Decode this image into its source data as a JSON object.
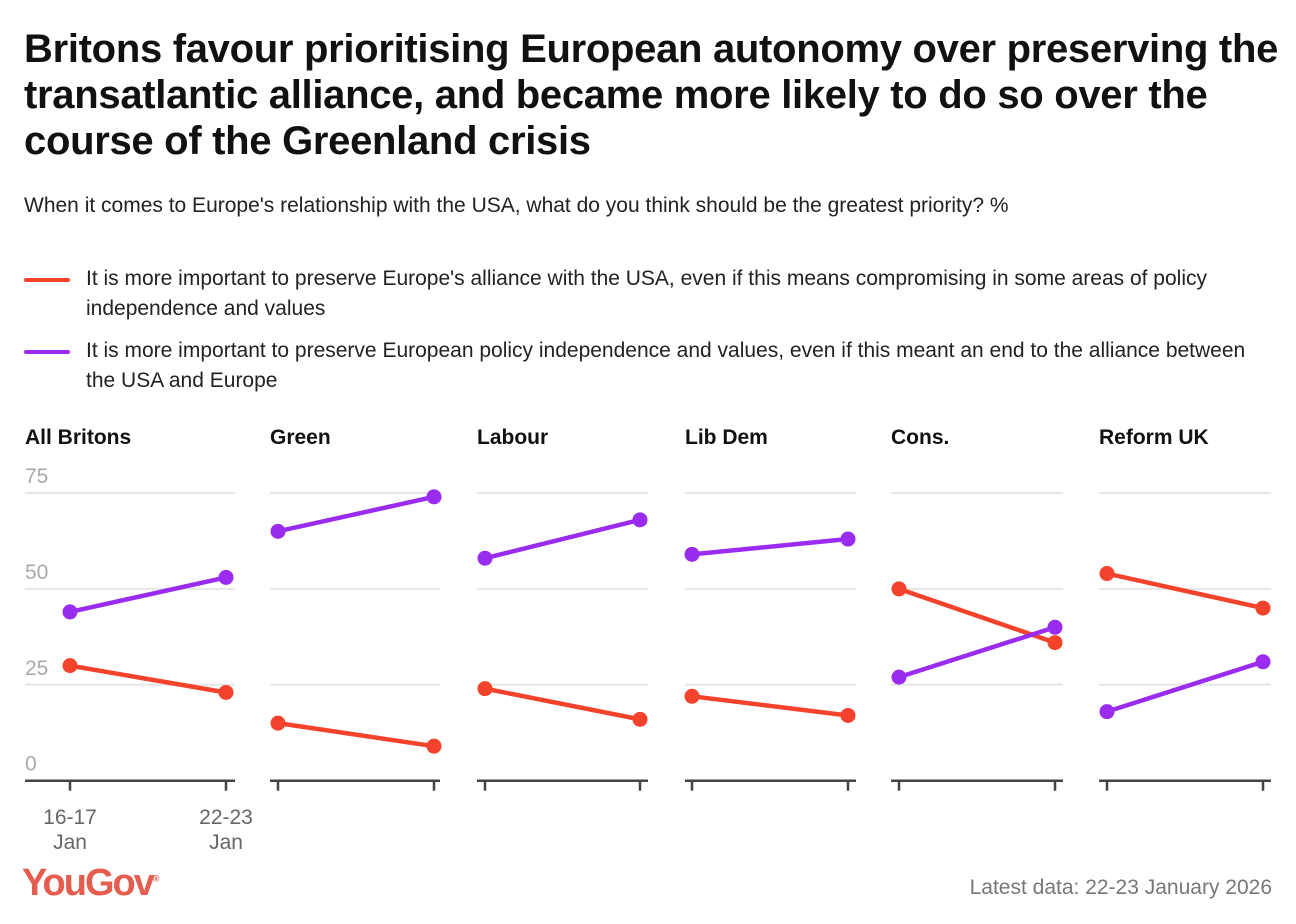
{
  "title": "Britons favour prioritising European autonomy over preserving the transatlantic alliance, and became more likely to do so over the course of the Greenland crisis",
  "subtitle": "When it comes to Europe's relationship with the USA, what do you think should be the greatest priority? %",
  "footer": {
    "logo": "YouGov",
    "note": "Latest data: 22-23 January 2026"
  },
  "colors": {
    "alliance": "#f4432c",
    "independence": "#9a2cf0"
  },
  "chart_data": {
    "type": "line",
    "legend_placement": "top",
    "grid": true,
    "ylim": [
      0,
      75
    ],
    "yticks": [
      0,
      25,
      50,
      75
    ],
    "x": [
      "16-17 Jan",
      "22-23 Jan"
    ],
    "x_tick_labels": [
      [
        "16-17",
        "Jan"
      ],
      [
        "22-23",
        "Jan"
      ]
    ],
    "series_legend": [
      {
        "key": "alliance",
        "name": "It is more important to preserve Europe's alliance with the USA, even if this means compromising in some areas of policy independence and values"
      },
      {
        "key": "independence",
        "name": "It is more important to preserve European policy independence and values, even if this meant an end to the alliance between the USA and Europe"
      }
    ],
    "panels": [
      {
        "title": "All Britons",
        "alliance": [
          30,
          23
        ],
        "independence": [
          44,
          53
        ]
      },
      {
        "title": "Green",
        "alliance": [
          15,
          9
        ],
        "independence": [
          65,
          74
        ]
      },
      {
        "title": "Labour",
        "alliance": [
          24,
          16
        ],
        "independence": [
          58,
          68
        ]
      },
      {
        "title": "Lib Dem",
        "alliance": [
          22,
          17
        ],
        "independence": [
          59,
          63
        ]
      },
      {
        "title": "Cons.",
        "alliance": [
          50,
          36
        ],
        "independence": [
          27,
          40
        ]
      },
      {
        "title": "Reform UK",
        "alliance": [
          54,
          45
        ],
        "independence": [
          18,
          31
        ]
      }
    ]
  }
}
